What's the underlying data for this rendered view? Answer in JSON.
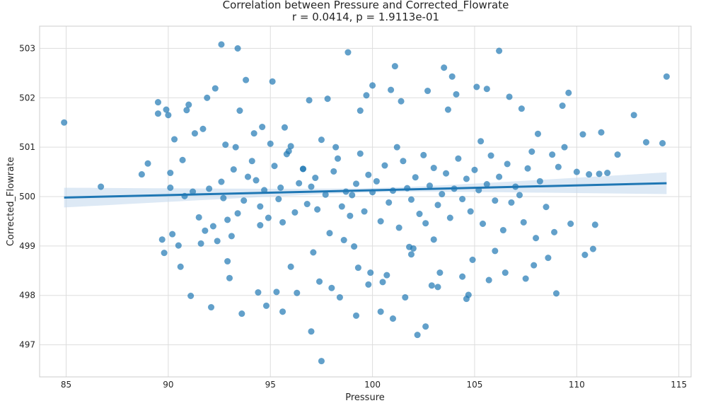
{
  "chart_data": {
    "type": "scatter",
    "title": "Correlation between Pressure and Corrected_Flowrate",
    "subtitle": "r = 0.0414, p = 1.9113e-01",
    "xlabel": "Pressure",
    "ylabel": "Corrected_Flowrate",
    "xlim": [
      83.7,
      115.6
    ],
    "ylim": [
      496.35,
      503.45
    ],
    "x_ticks": [
      85,
      90,
      95,
      100,
      105,
      110,
      115
    ],
    "x_tick_labels": [
      "85",
      "90",
      "95",
      "100",
      "105",
      "110",
      "115"
    ],
    "y_ticks": [
      497,
      498,
      499,
      500,
      501,
      502,
      503
    ],
    "y_tick_labels": [
      "497",
      "498",
      "499",
      "500",
      "501",
      "502",
      "503"
    ],
    "grid": true,
    "colors": {
      "points": "#1f77b4",
      "line": "#1f77b4",
      "band": "#c6dbef",
      "grid": "#dddddd",
      "spine": "#cccccc"
    },
    "regression": {
      "x": [
        84.9,
        114.4
      ],
      "y": [
        499.98,
        500.27
      ],
      "ci_low": [
        499.78,
        500.05
      ],
      "ci_high": [
        500.18,
        500.49
      ],
      "ci_center": [
        100.2,
        500.12
      ],
      "ci_center_halfwidth": 0.045
    },
    "points": {
      "x": [
        84.9,
        86.7,
        88.7,
        89.0,
        89.5,
        89.7,
        89.8,
        89.9,
        90.0,
        90.1,
        90.1,
        90.2,
        90.3,
        90.5,
        90.7,
        90.8,
        91.1,
        91.2,
        91.3,
        91.5,
        91.7,
        91.8,
        91.9,
        92.0,
        92.2,
        92.4,
        92.6,
        92.7,
        92.8,
        92.9,
        93.1,
        93.2,
        93.3,
        93.4,
        93.5,
        93.7,
        93.9,
        94.1,
        94.3,
        94.4,
        94.5,
        94.6,
        94.7,
        94.9,
        95.0,
        95.2,
        95.4,
        95.5,
        95.6,
        95.8,
        96.0,
        96.2,
        96.4,
        96.6,
        96.8,
        97.0,
        97.2,
        97.3,
        97.5,
        97.7,
        97.9,
        98.1,
        98.3,
        98.5,
        98.7,
        98.9,
        99.0,
        99.2,
        99.4,
        99.6,
        99.8,
        100.0,
        100.2,
        100.4,
        100.6,
        100.8,
        101.0,
        101.2,
        101.3,
        101.5,
        101.7,
        101.9,
        102.1,
        102.3,
        102.5,
        102.6,
        102.8,
        103.0,
        103.2,
        103.4,
        103.6,
        103.8,
        104.0,
        104.2,
        104.4,
        104.6,
        104.8,
        105.0,
        105.2,
        105.4,
        105.6,
        105.8,
        106.0,
        106.2,
        106.4,
        106.6,
        106.8,
        107.0,
        107.2,
        107.4,
        107.6,
        107.8,
        108.0,
        108.2,
        108.5,
        108.8,
        109.1,
        109.4,
        109.7,
        110.0,
        110.3,
        110.6,
        110.9,
        111.2,
        111.5,
        112.0,
        112.8,
        113.4,
        114.2,
        114.4,
        92.6,
        93.4,
        98.8,
        101.1,
        103.5,
        103.9,
        105.1,
        105.6,
        106.2,
        97.5,
        102.6,
        101.0,
        93.6,
        95.6,
        97.0,
        99.2,
        100.4,
        102.2,
        104.6,
        96.3,
        99.8,
        94.8,
        103.2,
        92.1,
        100.0,
        109.3,
        111.1,
        110.4,
        108.9,
        107.3,
        91.0,
        89.5,
        90.9,
        99.7,
        101.4,
        102.7,
        104.1,
        98.2,
        96.9,
        93.8,
        92.3,
        95.1,
        106.7,
        105.3,
        108.1,
        109.6,
        97.8,
        100.9,
        103.7,
        99.4,
        94.2,
        95.9,
        96.6,
        98.6,
        101.8,
        104.9,
        107.9,
        110.8,
        91.6,
        92.9,
        97.1,
        99.9,
        102.0,
        103.0,
        104.4,
        106.0,
        107.5,
        108.6,
        96.0,
        94.5,
        99.1,
        100.7,
        102.9,
        105.7,
        98.0,
        97.4,
        95.3,
        93.0,
        100.5,
        101.6,
        103.3,
        104.7,
        106.5,
        109.0,
        90.6,
        99.3,
        98.4,
        101.9,
        95.7
      ],
      "y": [
        501.5,
        500.2,
        500.45,
        500.67,
        501.91,
        499.13,
        498.86,
        501.76,
        501.65,
        500.48,
        500.18,
        499.24,
        501.16,
        499.01,
        500.74,
        500.01,
        497.99,
        500.1,
        501.28,
        499.58,
        501.37,
        499.31,
        502.0,
        500.16,
        499.4,
        499.1,
        500.3,
        499.97,
        501.05,
        499.53,
        499.2,
        500.55,
        501.0,
        499.66,
        501.74,
        499.92,
        500.4,
        500.72,
        500.33,
        498.06,
        499.8,
        501.41,
        500.13,
        499.57,
        501.07,
        500.62,
        499.95,
        500.18,
        499.48,
        500.86,
        501.02,
        499.68,
        500.27,
        500.56,
        499.85,
        500.2,
        500.38,
        499.74,
        501.15,
        500.04,
        499.26,
        500.51,
        500.77,
        499.8,
        500.1,
        499.61,
        500.03,
        500.26,
        500.87,
        499.7,
        500.44,
        500.09,
        500.31,
        499.5,
        500.63,
        499.88,
        500.12,
        501.0,
        499.37,
        500.72,
        500.17,
        499.94,
        500.39,
        499.65,
        500.84,
        499.46,
        500.22,
        500.58,
        499.83,
        500.05,
        500.47,
        499.57,
        500.16,
        500.77,
        499.95,
        500.36,
        499.7,
        500.54,
        500.13,
        499.45,
        500.25,
        500.83,
        499.92,
        500.4,
        499.32,
        500.66,
        499.88,
        500.2,
        500.03,
        499.48,
        500.57,
        500.91,
        499.16,
        500.31,
        499.79,
        500.85,
        500.6,
        501.0,
        499.45,
        500.5,
        501.26,
        500.45,
        499.43,
        501.3,
        500.48,
        500.85,
        501.65,
        501.1,
        501.08,
        502.43,
        503.08,
        503.0,
        502.92,
        502.64,
        502.61,
        502.43,
        502.22,
        502.18,
        502.95,
        496.67,
        497.37,
        497.53,
        497.63,
        497.67,
        497.27,
        497.59,
        497.67,
        497.2,
        497.93,
        498.05,
        498.22,
        497.79,
        498.17,
        497.76,
        502.25,
        501.84,
        500.46,
        498.82,
        499.28,
        501.78,
        501.86,
        501.68,
        501.75,
        502.05,
        501.93,
        502.14,
        502.07,
        501.0,
        501.95,
        502.36,
        502.19,
        502.33,
        502.02,
        501.12,
        501.27,
        502.1,
        501.98,
        502.16,
        501.76,
        501.74,
        501.28,
        500.92,
        500.56,
        499.12,
        498.98,
        498.72,
        498.61,
        498.94,
        499.05,
        498.69,
        498.87,
        498.46,
        498.95,
        499.13,
        498.38,
        498.9,
        498.34,
        498.76,
        498.58,
        499.42,
        498.99,
        498.41,
        498.2,
        498.31,
        498.15,
        498.28,
        498.07,
        498.35,
        498.27,
        497.96,
        498.46,
        498.01,
        498.46,
        498.04,
        498.58,
        498.56,
        497.96,
        498.83,
        501.4
      ]
    }
  }
}
